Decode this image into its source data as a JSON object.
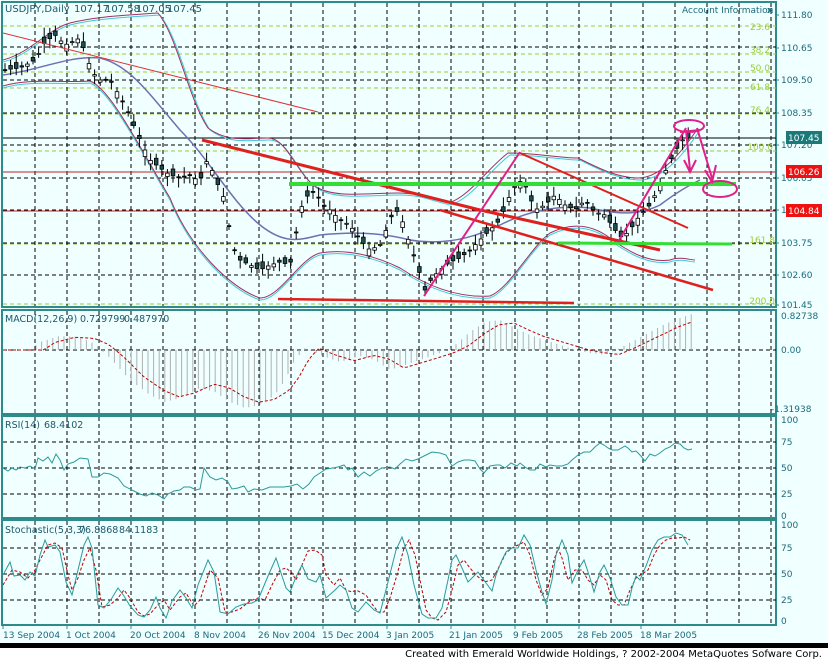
{
  "window": {
    "symbol_header": "USDJPY,Daily",
    "ohlc": [
      "107.17",
      "107.58",
      "107.05",
      "107.45"
    ],
    "account_info_label": "Account Information",
    "account_info_close": "x"
  },
  "price_axis": {
    "ticks": [
      "111.80",
      "110.65",
      "109.50",
      "108.35",
      "107.20",
      "106.05",
      "104.90",
      "103.75",
      "102.60",
      "101.45"
    ],
    "current_price_badge": "107.45",
    "level_badges": [
      "106.26",
      "104.84"
    ]
  },
  "fibonacci_levels": [
    "23.6",
    "38.2",
    "50.0",
    "61.8",
    "76.4",
    "100.0",
    "161.8",
    "200.0"
  ],
  "macd": {
    "label": "MACD(12,26,9)",
    "value1": "0.729799",
    "value2": "0.487970",
    "axis": [
      "0.82738",
      "0.00",
      "-1.31938"
    ]
  },
  "rsi": {
    "label": "RSI(14)",
    "value": "68.4102",
    "axis": [
      "100",
      "75",
      "50",
      "25",
      "0"
    ]
  },
  "stochastic": {
    "label": "Stochastic(5,3,3)",
    "value1": "76.8868",
    "value2": "84.1183",
    "axis": [
      "100",
      "75",
      "50",
      "25",
      "0"
    ]
  },
  "date_axis": [
    "13 Sep 2004",
    "1 Oct 2004",
    "20 Oct 2004",
    "8 Nov 2004",
    "26 Nov 2004",
    "15 Dec 2004",
    "3 Jan 2005",
    "21 Jan 2005",
    "9 Feb 2005",
    "28 Feb 2005",
    "18 Mar 2005"
  ],
  "footer": {
    "credit": "Created with Emerald Worldwide Holdings, ? 2002-2004 MetaQuotes Sofware Corp."
  },
  "colors": {
    "background": "#f0ffff",
    "frame": "#2e8b8b",
    "grid": "#000000",
    "fib": "#9acd32",
    "trendline_red": "#e0201c",
    "support_green": "#33dd33",
    "pattern_magenta": "#e0208a",
    "band_cyan": "#40c8d8",
    "band_purple": "#a03060",
    "rsi_line": "#2a9a9a",
    "signal_dashed": "#c00000",
    "macd_hist": "#b0b0b0"
  },
  "chart_data": [
    {
      "type": "candlestick",
      "title": "USDJPY,Daily",
      "ohlc_last": {
        "open": 107.17,
        "high": 107.58,
        "low": 107.05,
        "close": 107.45
      },
      "x": [
        "13 Sep 2004",
        "1 Oct 2004",
        "20 Oct 2004",
        "8 Nov 2004",
        "26 Nov 2004",
        "15 Dec 2004",
        "3 Jan 2005",
        "21 Jan 2005",
        "9 Feb 2005",
        "28 Feb 2005",
        "18 Mar 2005"
      ],
      "approx_close_at_dates": [
        109.8,
        110.4,
        107.2,
        106.2,
        102.6,
        104.2,
        104.0,
        103.5,
        105.5,
        104.8,
        107.4
      ],
      "ylim": [
        101.45,
        111.8
      ],
      "yticks": [
        111.8,
        110.65,
        109.5,
        108.35,
        107.2,
        106.05,
        104.9,
        103.75,
        102.6,
        101.45
      ],
      "horizontal_levels": [
        106.26,
        104.84
      ],
      "fibonacci": {
        "23.6": 111.4,
        "38.2": 110.85,
        "50.0": 110.35,
        "61.8": 109.9,
        "76.4": 108.6,
        "100.0": 107.3,
        "161.8": 103.8,
        "200.0": 101.55
      },
      "overlays": [
        "Bollinger Bands",
        "Moving Averages",
        "Trend lines",
        "Support/Resistance"
      ],
      "grid": true
    },
    {
      "type": "bar",
      "title": "MACD(12,26,9)",
      "values_last": [
        0.729799,
        0.48797
      ],
      "ylim": [
        -1.31938,
        0.82738
      ],
      "yticks": [
        0.82738,
        0.0,
        -1.31938
      ]
    },
    {
      "type": "line",
      "title": "RSI(14)",
      "values_last": [
        68.4102
      ],
      "ylim": [
        0,
        100
      ],
      "yticks": [
        100,
        75,
        50,
        25,
        0
      ]
    },
    {
      "type": "line",
      "title": "Stochastic(5,3,3)",
      "series": [
        {
          "name": "%K",
          "last": 76.8868
        },
        {
          "name": "%D",
          "last": 84.1183
        }
      ],
      "ylim": [
        0,
        100
      ],
      "yticks": [
        100,
        75,
        50,
        25,
        0
      ]
    }
  ]
}
